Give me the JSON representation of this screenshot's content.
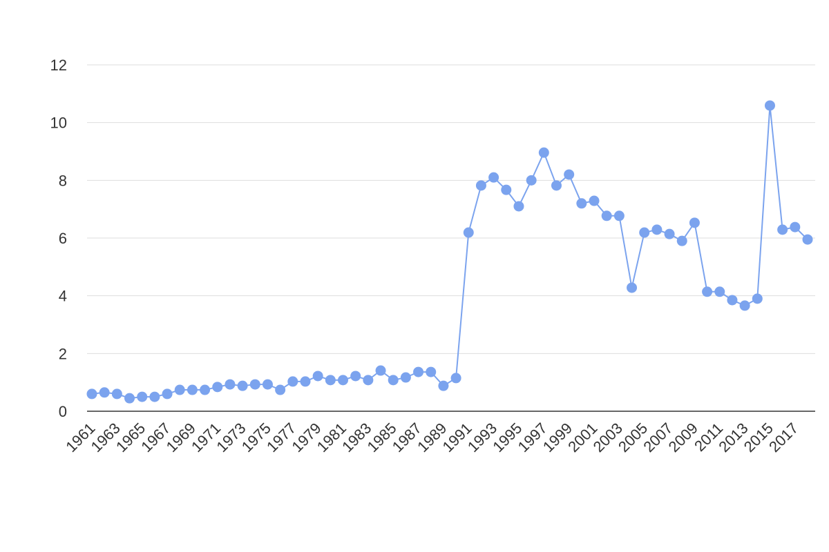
{
  "chart_data": {
    "type": "line",
    "color": "#7ba3ee",
    "grid": true,
    "x": [
      1961,
      1962,
      1963,
      1964,
      1965,
      1966,
      1967,
      1968,
      1969,
      1970,
      1971,
      1972,
      1973,
      1974,
      1975,
      1976,
      1977,
      1978,
      1979,
      1980,
      1981,
      1982,
      1983,
      1984,
      1985,
      1986,
      1987,
      1988,
      1989,
      1990,
      1991,
      1992,
      1993,
      1994,
      1995,
      1996,
      1997,
      1998,
      1999,
      2000,
      2001,
      2002,
      2003,
      2004,
      2005,
      2006,
      2007,
      2008,
      2009,
      2010,
      2011,
      2012,
      2013,
      2014,
      2015,
      2016,
      2017,
      2018
    ],
    "values": [
      0.6,
      0.65,
      0.6,
      0.45,
      0.5,
      0.5,
      0.6,
      0.74,
      0.74,
      0.74,
      0.84,
      0.93,
      0.88,
      0.93,
      0.93,
      0.74,
      1.03,
      1.03,
      1.22,
      1.08,
      1.08,
      1.22,
      1.08,
      1.41,
      1.08,
      1.17,
      1.36,
      1.36,
      0.88,
      1.15,
      6.19,
      7.82,
      8.1,
      7.67,
      7.1,
      8.0,
      8.96,
      7.82,
      8.2,
      7.2,
      7.29,
      6.77,
      6.77,
      4.28,
      6.19,
      6.29,
      6.14,
      5.9,
      6.53,
      4.14,
      4.14,
      3.85,
      3.66,
      3.9,
      10.59,
      6.29,
      6.38,
      5.95
    ],
    "xlim": [
      1961,
      2018
    ],
    "xticks": [
      1961,
      1963,
      1965,
      1967,
      1969,
      1971,
      1973,
      1975,
      1977,
      1979,
      1981,
      1983,
      1985,
      1987,
      1989,
      1991,
      1993,
      1995,
      1997,
      1999,
      2001,
      2003,
      2005,
      2007,
      2009,
      2011,
      2013,
      2015,
      2017
    ],
    "ylim": [
      0,
      12
    ],
    "yticks": [
      0,
      2,
      4,
      6,
      8,
      10,
      12
    ]
  }
}
